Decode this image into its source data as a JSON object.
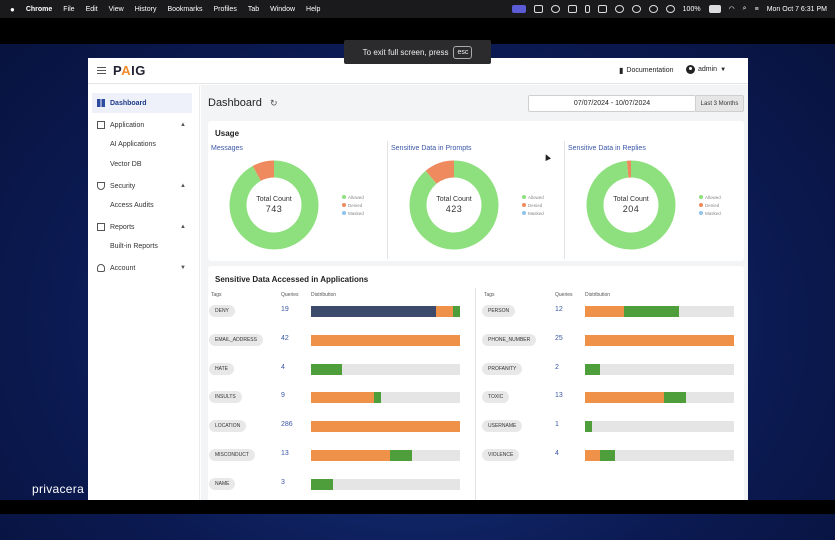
{
  "menubar": {
    "app": "Chrome",
    "items": [
      "File",
      "Edit",
      "View",
      "History",
      "Bookmarks",
      "Profiles",
      "Tab",
      "Window",
      "Help"
    ],
    "battery": "100%",
    "clock": "Mon Oct 7  6:31 PM"
  },
  "toast": {
    "text": "To exit full screen, press",
    "key": "esc"
  },
  "header": {
    "logo_p": "P",
    "logo_a": "A",
    "logo_ig": "IG",
    "documentation": "Documentation",
    "user": "admin"
  },
  "sidebar": {
    "dashboard": "Dashboard",
    "application": "Application",
    "ai_applications": "AI Applications",
    "vector_db": "Vector DB",
    "security": "Security",
    "access_audits": "Access Audits",
    "reports": "Reports",
    "built_in_reports": "Built-in Reports",
    "account": "Account"
  },
  "page": {
    "title": "Dashboard",
    "date_range": "07/07/2024 - 10/07/2024",
    "range_button": "Last 3 Months"
  },
  "usage": {
    "title": "Usage",
    "total_label": "Total Count",
    "legend": {
      "allowed": "Allowed",
      "denied": "Denied",
      "masked": "Masked"
    },
    "colors": {
      "allowed": "#8ee07e",
      "denied": "#ef8a5e",
      "masked": "#8fc3ea"
    },
    "charts": [
      {
        "title": "Messages",
        "total": "743",
        "allowed_frac": 0.92,
        "denied_frac": 0.08
      },
      {
        "title": "Sensitive Data in Prompts",
        "total": "423",
        "allowed_frac": 0.89,
        "denied_frac": 0.11
      },
      {
        "title": "Sensitive Data in Replies",
        "total": "204",
        "allowed_frac": 0.985,
        "denied_frac": 0.015
      }
    ]
  },
  "sensitive": {
    "title": "Sensitive Data Accessed in Applications",
    "headers": {
      "tags": "Tags",
      "queries": "Queries",
      "distribution": "Distribution"
    },
    "colors": {
      "navy": "#3c4a6b",
      "orange": "#f0914a",
      "green": "#4f9e3c",
      "empty": "#e5e5e5"
    },
    "left": [
      {
        "tag": "DENY",
        "queries": "19",
        "segments": [
          {
            "c": "navy",
            "f": 0.84
          },
          {
            "c": "orange",
            "f": 0.11
          },
          {
            "c": "green",
            "f": 0.05
          }
        ]
      },
      {
        "tag": "EMAIL_ADDRESS",
        "queries": "42",
        "segments": [
          {
            "c": "orange",
            "f": 1.0
          }
        ]
      },
      {
        "tag": "HATE",
        "queries": "4",
        "segments": [
          {
            "c": "green",
            "f": 0.21
          }
        ]
      },
      {
        "tag": "INSULTS",
        "queries": "9",
        "segments": [
          {
            "c": "orange",
            "f": 0.42
          },
          {
            "c": "green",
            "f": 0.05
          }
        ]
      },
      {
        "tag": "LOCATION",
        "queries": "286",
        "segments": [
          {
            "c": "orange",
            "f": 1.0
          }
        ]
      },
      {
        "tag": "MISCONDUCT",
        "queries": "13",
        "segments": [
          {
            "c": "orange",
            "f": 0.53
          },
          {
            "c": "green",
            "f": 0.15
          }
        ]
      },
      {
        "tag": "NAME",
        "queries": "3",
        "segments": [
          {
            "c": "green",
            "f": 0.15
          }
        ]
      }
    ],
    "right": [
      {
        "tag": "PERSON",
        "queries": "12",
        "segments": [
          {
            "c": "orange",
            "f": 0.26
          },
          {
            "c": "green",
            "f": 0.37
          }
        ]
      },
      {
        "tag": "PHONE_NUMBER",
        "queries": "25",
        "segments": [
          {
            "c": "orange",
            "f": 1.0
          }
        ]
      },
      {
        "tag": "PROFANITY",
        "queries": "2",
        "segments": [
          {
            "c": "green",
            "f": 0.1
          }
        ]
      },
      {
        "tag": "TOXIC",
        "queries": "13",
        "segments": [
          {
            "c": "orange",
            "f": 0.53
          },
          {
            "c": "green",
            "f": 0.15
          }
        ]
      },
      {
        "tag": "USERNAME",
        "queries": "1",
        "segments": [
          {
            "c": "green",
            "f": 0.05
          }
        ]
      },
      {
        "tag": "VIOLENCE",
        "queries": "4",
        "segments": [
          {
            "c": "orange",
            "f": 0.1
          },
          {
            "c": "green",
            "f": 0.1
          }
        ]
      }
    ]
  },
  "watermark": "privacera"
}
